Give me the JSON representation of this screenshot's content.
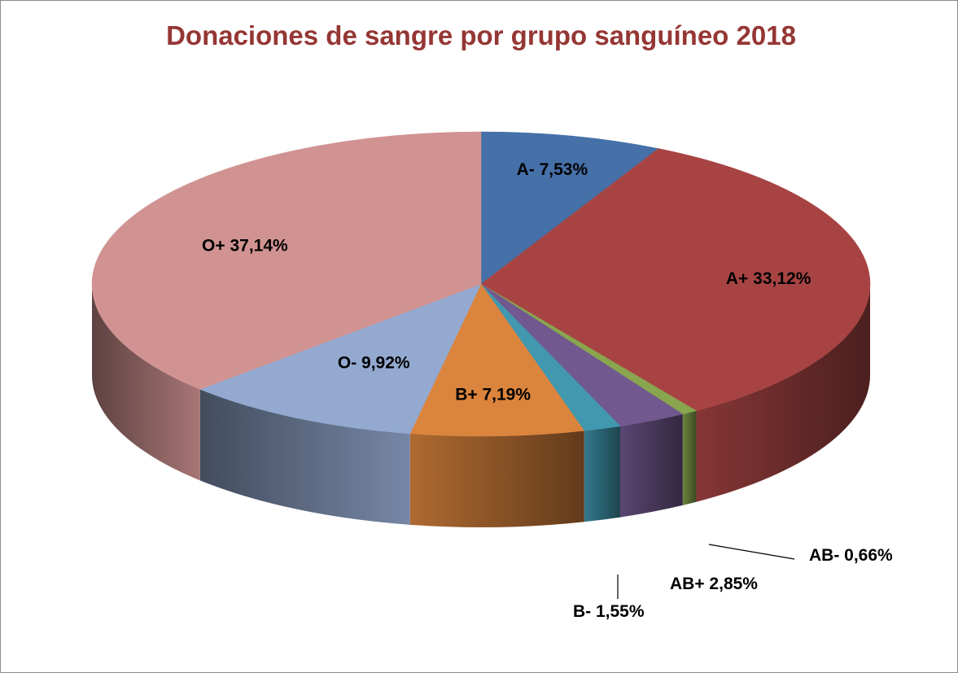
{
  "chart_data": {
    "type": "pie",
    "title": "Donaciones de sangre por grupo sanguíneo 2018",
    "slices": [
      {
        "name": "A-",
        "value": 7.53,
        "label": "A- 7,53%",
        "color": "#4570a8"
      },
      {
        "name": "A+",
        "value": 33.12,
        "label": "A+ 33,12%",
        "color": "#a74443"
      },
      {
        "name": "AB-",
        "value": 0.66,
        "label": "AB- 0,66%",
        "color": "#89a54e"
      },
      {
        "name": "AB+",
        "value": 2.85,
        "label": "AB+ 2,85%",
        "color": "#71588f"
      },
      {
        "name": "B-",
        "value": 1.55,
        "label": "B- 1,55%",
        "color": "#4198af"
      },
      {
        "name": "B+",
        "value": 7.19,
        "label": "B+ 7,19%",
        "color": "#db843d"
      },
      {
        "name": "O-",
        "value": 9.92,
        "label": "O- 9,92%",
        "color": "#93a9cf"
      },
      {
        "name": "O+",
        "value": 37.14,
        "label": "O+ 37,14%",
        "color": "#d19392"
      }
    ],
    "legend": "none",
    "colors": {
      "title": "#953735",
      "border": "#8c8c8c"
    }
  }
}
